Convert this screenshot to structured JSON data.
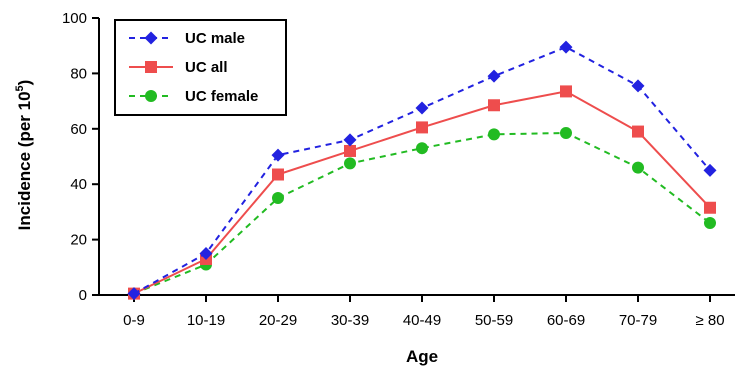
{
  "chart_data": {
    "type": "line",
    "xlabel": "Age",
    "ylabel_main": "Incidence (per 10",
    "ylabel_sup": "5",
    "ylabel_close": ")",
    "ylim": [
      0,
      100
    ],
    "yticks": [
      0,
      20,
      40,
      60,
      80,
      100
    ],
    "categories": [
      "0-9",
      "10-19",
      "20-29",
      "30-39",
      "40-49",
      "50-59",
      "60-69",
      "70-79",
      "≥ 80"
    ],
    "grid": false,
    "legend_position": "top-left",
    "series": [
      {
        "name": "UC male",
        "color": "#2222e0",
        "marker": "diamond",
        "dash": "dashed",
        "values": [
          0.5,
          15,
          50.5,
          56,
          67.5,
          79,
          89.5,
          75.5,
          45
        ]
      },
      {
        "name": "UC all",
        "color": "#ee4d4d",
        "marker": "square",
        "dash": "solid",
        "values": [
          0.5,
          13,
          43.5,
          52,
          60.5,
          68.5,
          73.5,
          59,
          31.5
        ]
      },
      {
        "name": "UC female",
        "color": "#22bb22",
        "marker": "circle",
        "dash": "dashed",
        "values": [
          0.5,
          11,
          35,
          47.5,
          53,
          58,
          58.5,
          46,
          26
        ]
      }
    ]
  }
}
